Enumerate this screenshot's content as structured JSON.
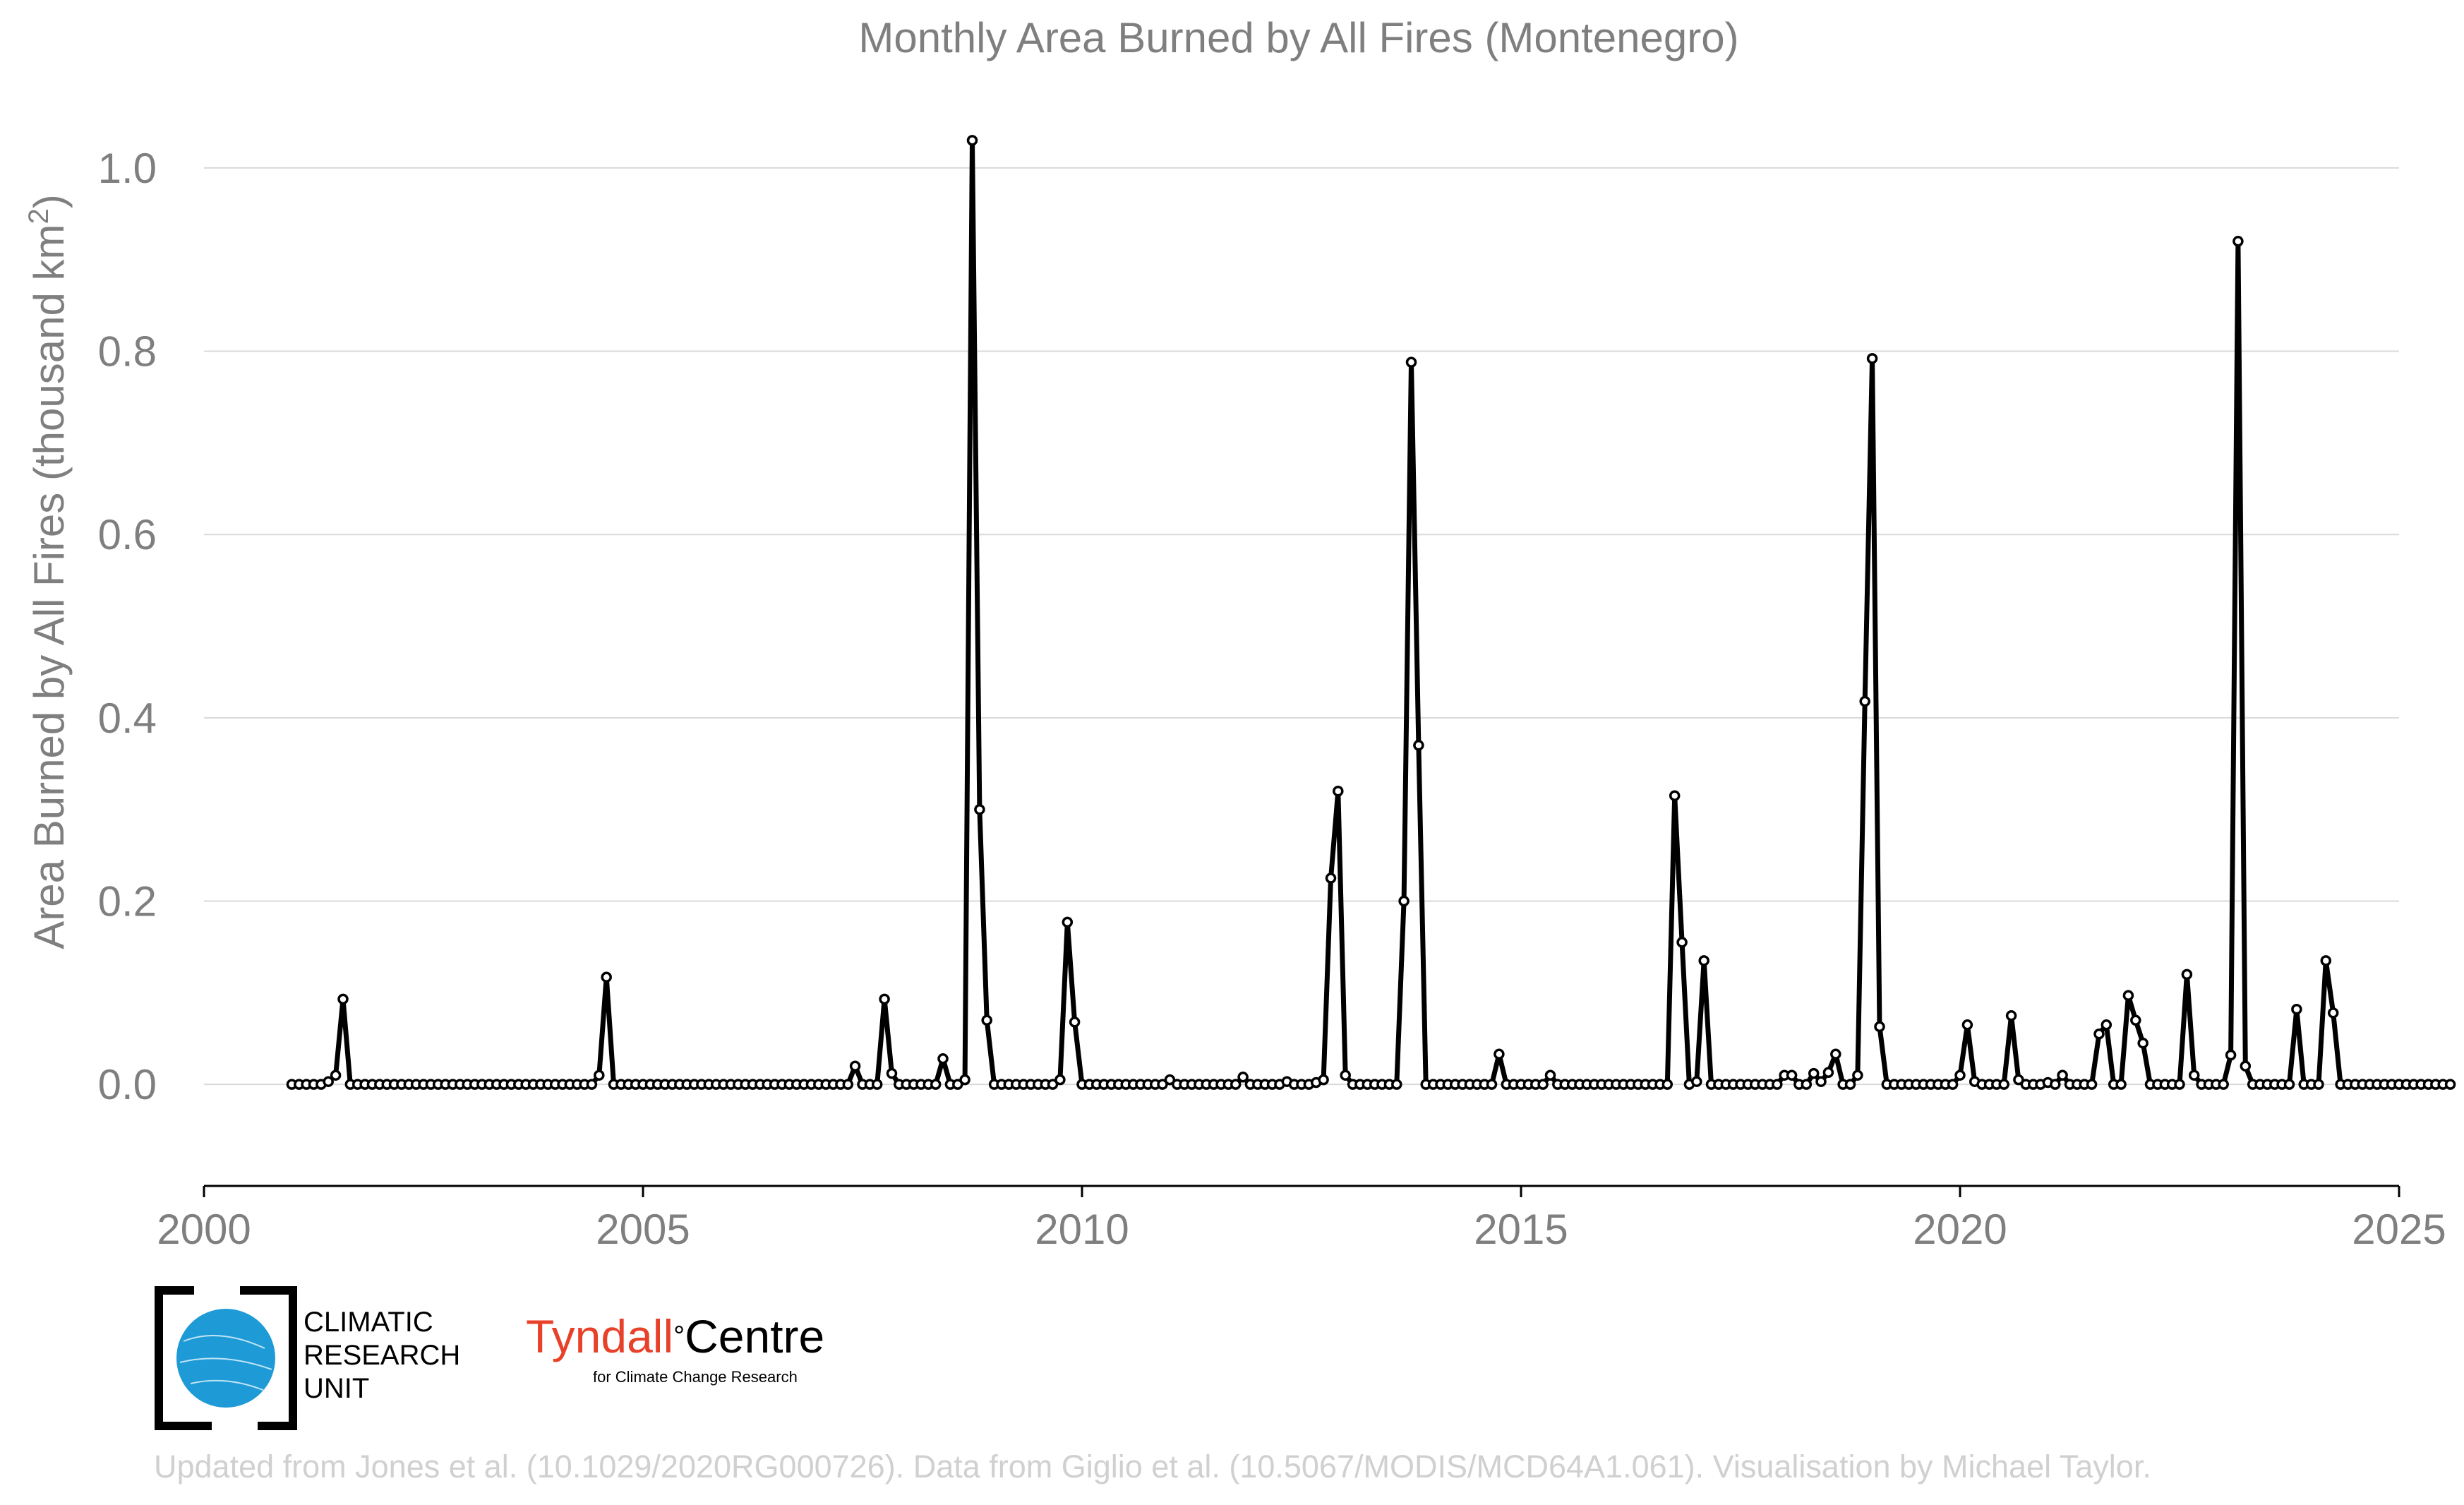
{
  "chart_data": {
    "type": "line",
    "title": "Monthly Area Burned by All Fires (Montenegro)",
    "ylabel": "Area Burned by All Fires (thousand km",
    "ylabel_superscript": "2",
    "ylabel_suffix": ")",
    "xlim": [
      2000,
      2025
    ],
    "ylim": [
      -0.08,
      1.06
    ],
    "xticks": [
      2000,
      2005,
      2010,
      2015,
      2020,
      2025
    ],
    "xtick_labels": [
      "2000",
      "2005",
      "2010",
      "2015",
      "2020",
      "2025"
    ],
    "yticks": [
      0.0,
      0.2,
      0.4,
      0.6,
      0.8,
      1.0
    ],
    "ytick_labels": [
      "0.0",
      "0.2",
      "0.4",
      "0.6",
      "0.8",
      "1.0"
    ],
    "grid": true,
    "series": [
      {
        "start": "2001-01",
        "values": [
          0,
          0,
          0,
          0,
          0,
          0.003,
          0.01,
          0.093,
          0,
          0,
          0,
          0,
          0,
          0,
          0,
          0,
          0,
          0,
          0,
          0,
          0,
          0,
          0,
          0,
          0,
          0,
          0,
          0,
          0,
          0,
          0,
          0,
          0,
          0,
          0,
          0,
          0,
          0,
          0,
          0,
          0,
          0,
          0.01,
          0.117,
          0,
          0,
          0,
          0,
          0,
          0,
          0,
          0,
          0,
          0,
          0,
          0,
          0,
          0,
          0,
          0,
          0,
          0,
          0,
          0,
          0,
          0,
          0,
          0,
          0,
          0,
          0,
          0,
          0,
          0,
          0,
          0,
          0,
          0.02,
          0,
          0,
          0,
          0.093,
          0.012,
          0,
          0,
          0,
          0,
          0,
          0,
          0.028,
          0,
          0,
          0.005,
          1.03,
          0.3,
          0.07,
          0,
          0,
          0,
          0,
          0,
          0,
          0,
          0,
          0,
          0.005,
          0.177,
          0.068,
          0,
          0,
          0,
          0,
          0,
          0,
          0,
          0,
          0,
          0,
          0,
          0,
          0.005,
          0,
          0,
          0,
          0,
          0,
          0,
          0,
          0,
          0,
          0.008,
          0,
          0,
          0,
          0,
          0,
          0.003,
          0,
          0,
          0,
          0.002,
          0.005,
          0.225,
          0.32,
          0.01,
          0,
          0,
          0,
          0,
          0,
          0,
          0,
          0.2,
          0.788,
          0.37,
          0,
          0,
          0,
          0,
          0,
          0,
          0,
          0,
          0,
          0,
          0.033,
          0,
          0,
          0,
          0,
          0,
          0,
          0.01,
          0,
          0,
          0,
          0,
          0,
          0,
          0,
          0,
          0,
          0,
          0,
          0,
          0,
          0,
          0,
          0,
          0.315,
          0.155,
          0,
          0.003,
          0.135,
          0,
          0,
          0,
          0,
          0,
          0,
          0,
          0,
          0,
          0,
          0.01,
          0.01,
          0,
          0,
          0.012,
          0.003,
          0.013,
          0.033,
          0,
          0,
          0.01,
          0.418,
          0.792,
          0.063,
          0,
          0,
          0,
          0,
          0,
          0,
          0,
          0,
          0,
          0,
          0.01,
          0.065,
          0.003,
          0,
          0,
          0,
          0,
          0.075,
          0.005,
          0,
          0,
          0,
          0.002,
          0,
          0.01,
          0,
          0,
          0,
          0,
          0.055,
          0.065,
          0,
          0,
          0.097,
          0.07,
          0.045,
          0,
          0,
          0,
          0,
          0,
          0.12,
          0.01,
          0,
          0,
          0,
          0,
          0.032,
          0.92,
          0.02,
          0,
          0,
          0,
          0,
          0,
          0,
          0.082,
          0,
          0,
          0,
          0.135,
          0.078,
          0,
          0,
          0,
          0,
          0,
          0,
          0,
          0,
          0,
          0,
          0,
          0,
          0,
          0,
          0,
          0
        ]
      }
    ]
  },
  "logos": {
    "cru_line1": "CLIMATIC",
    "cru_line2": "RESEARCH",
    "cru_line3": "UNIT",
    "tyndall_main_red": "Tyndall",
    "tyndall_degree": "°",
    "tyndall_main_black": "Centre",
    "tyndall_sub": "for Climate Change Research"
  },
  "credit": "Updated from Jones et al. (10.1029/2020RG000726). Data from Giglio et al. (10.5067/MODIS/MCD64A1.061). Visualisation by Michael Taylor.",
  "colors": {
    "line": "#000000",
    "marker_fill": "#ffffff",
    "text": "#7f7f7f",
    "grid": "#d9d9d9",
    "globe": "#1e9ad6",
    "tyndall_red": "#e8412a"
  }
}
